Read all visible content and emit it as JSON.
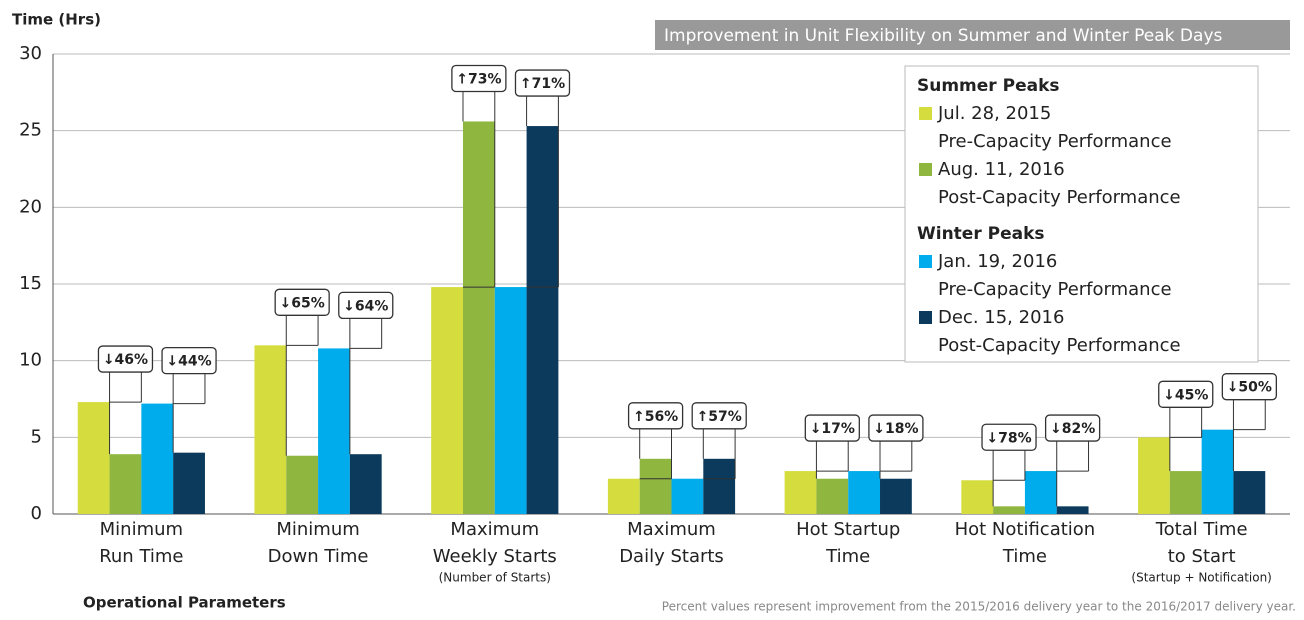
{
  "chart_data": {
    "type": "bar",
    "title": "Improvement in Unit Flexibility on Summer and Winter Peak Days",
    "y_label": "Time (Hrs)",
    "x_label": "Operational Parameters",
    "footnote": "Percent values represent improvement from the 2015/2016 delivery year to the 2016/2017 delivery year.",
    "categories": [
      [
        "Minimum",
        "Run Time"
      ],
      [
        "Minimum",
        "Down Time"
      ],
      [
        "Maximum",
        "Weekly Starts"
      ],
      [
        "Maximum",
        "Daily Starts"
      ],
      [
        "Hot Startup",
        "Time"
      ],
      [
        "Hot Notification",
        "Time"
      ],
      [
        "Total Time",
        "to Start"
      ]
    ],
    "category_notes": [
      null,
      null,
      "(Number of Starts)",
      null,
      null,
      null,
      "(Startup + Notification)"
    ],
    "series": [
      {
        "name": "Jul. 28, 2015",
        "performance": "Pre-Capacity Performance",
        "group": "Summer Peaks",
        "color": "#d5dd3e",
        "values": [
          7.3,
          11.0,
          14.8,
          2.3,
          2.8,
          2.2,
          5.0
        ]
      },
      {
        "name": "Aug. 11, 2016",
        "performance": "Post-Capacity Performance",
        "group": "Summer Peaks",
        "color": "#8fb63f",
        "values": [
          3.9,
          3.8,
          25.6,
          3.6,
          2.3,
          0.5,
          2.8
        ]
      },
      {
        "name": "Jan. 19, 2016",
        "performance": "Pre-Capacity Performance",
        "group": "Winter Peaks",
        "color": "#00acec",
        "values": [
          7.2,
          10.8,
          14.8,
          2.3,
          2.8,
          2.8,
          5.5
        ]
      },
      {
        "name": "Dec. 15, 2016",
        "performance": "Post-Capacity Performance",
        "group": "Winter Peaks",
        "color": "#0b3a5c",
        "values": [
          4.0,
          3.9,
          25.3,
          3.6,
          2.3,
          0.5,
          2.8
        ]
      }
    ],
    "summer_change": [
      "↓46%",
      "↓65%",
      "↑73%",
      "↑56%",
      "↓17%",
      "↓78%",
      "↓45%"
    ],
    "winter_change": [
      "↓44%",
      "↓64%",
      "↑71%",
      "↑57%",
      "↓18%",
      "↓82%",
      "↓50%"
    ],
    "ylim": [
      0,
      30
    ],
    "yticks": [
      0,
      5,
      10,
      15,
      20,
      25,
      30
    ],
    "grid": true
  }
}
